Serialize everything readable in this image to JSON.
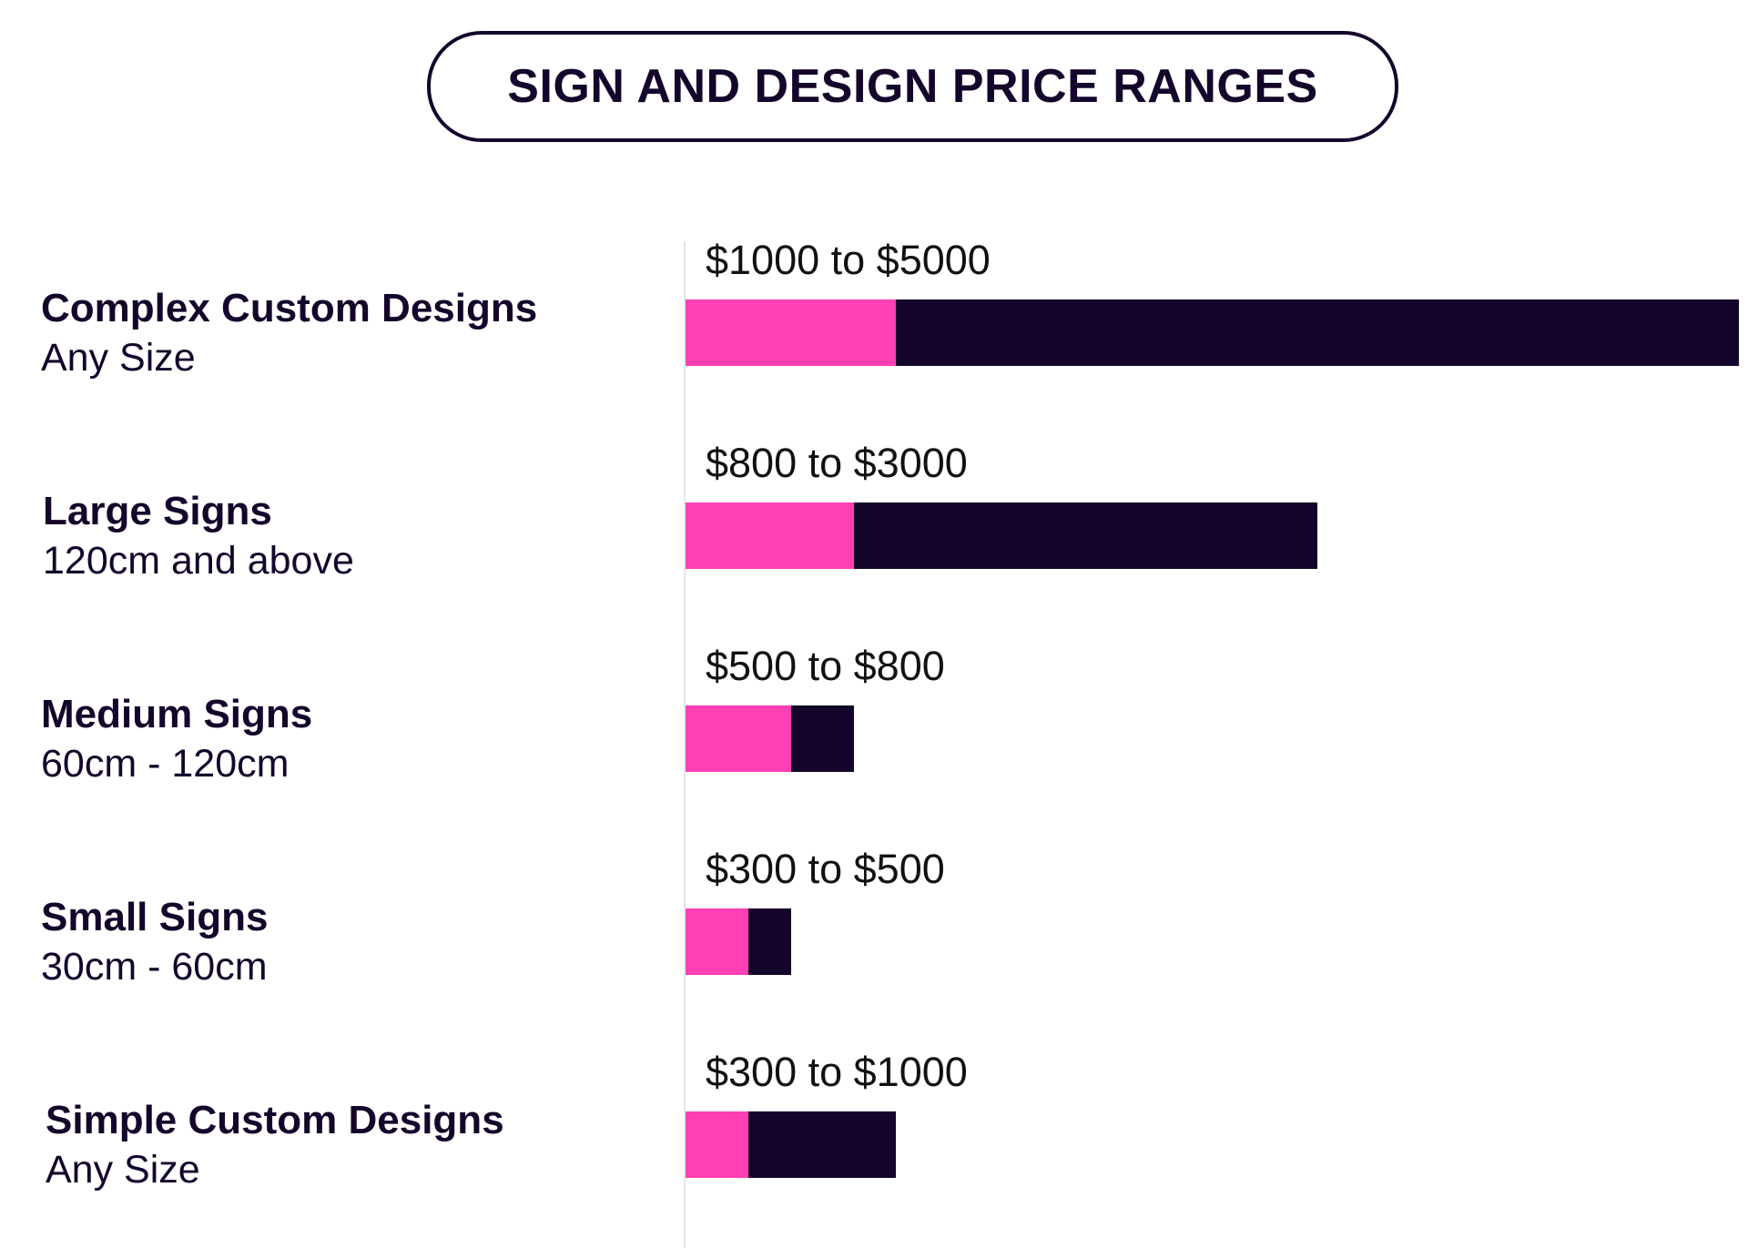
{
  "chart_data": {
    "type": "bar",
    "orientation": "horizontal",
    "stacked_range": true,
    "title": "SIGN AND DESIGN PRICE RANGES",
    "xlim": [
      0,
      5000
    ],
    "categories": [
      {
        "name": "Complex Custom Designs",
        "size": "Any Size",
        "range_label": "$1000 to $5000",
        "min": 1000,
        "max": 5000
      },
      {
        "name": "Large Signs",
        "size": "120cm and above",
        "range_label": "$800 to $3000",
        "min": 800,
        "max": 3000
      },
      {
        "name": "Medium Signs",
        "size": "60cm - 120cm",
        "range_label": "$500 to $800",
        "min": 500,
        "max": 800
      },
      {
        "name": "Small Signs",
        "size": "30cm - 60cm",
        "range_label": "$300 to $500",
        "min": 300,
        "max": 500
      },
      {
        "name": "Simple Custom Designs",
        "size": "Any Size",
        "range_label": "$300 to $1000",
        "min": 300,
        "max": 1000
      }
    ],
    "colors": {
      "min_segment": "#ff3fb4",
      "max_segment": "#14062b"
    }
  }
}
